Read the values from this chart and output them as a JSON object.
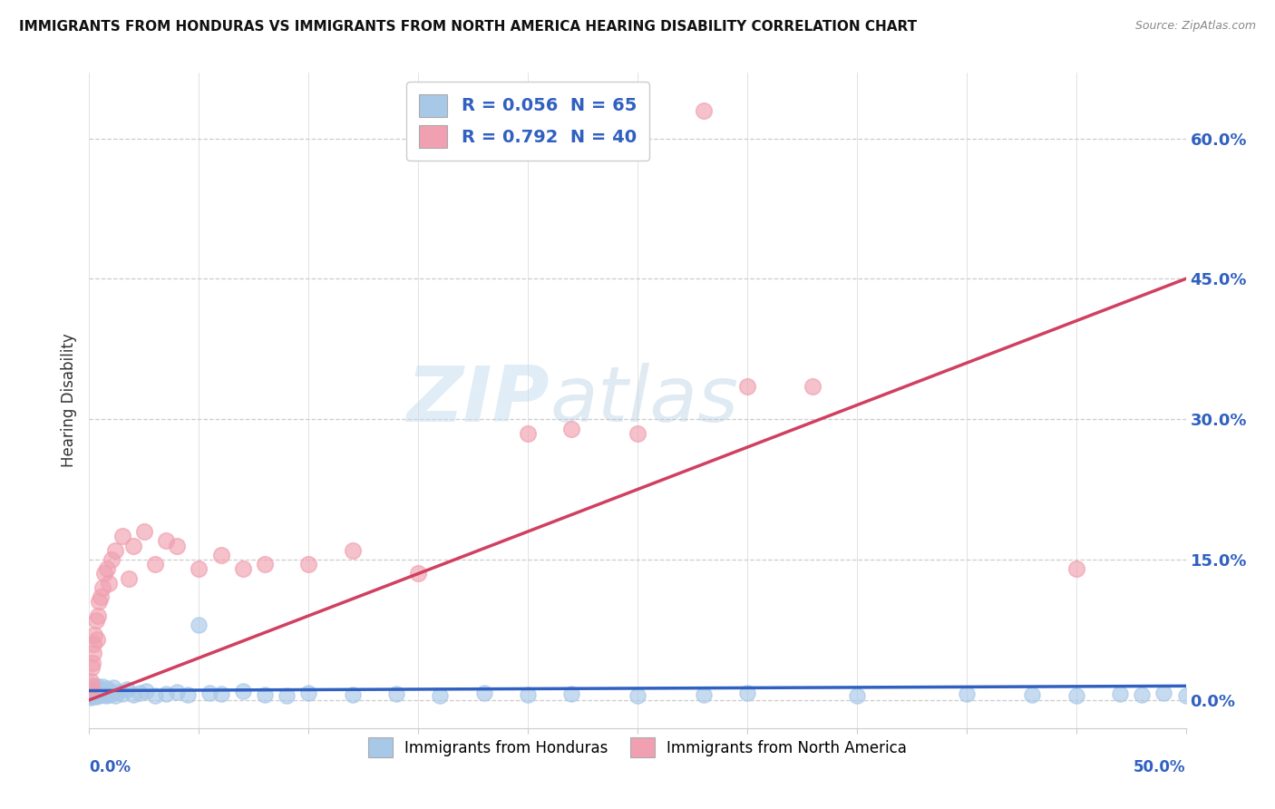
{
  "title": "IMMIGRANTS FROM HONDURAS VS IMMIGRANTS FROM NORTH AMERICA HEARING DISABILITY CORRELATION CHART",
  "source": "Source: ZipAtlas.com",
  "ylabel": "Hearing Disability",
  "ytick_labels": [
    "0.0%",
    "15.0%",
    "30.0%",
    "45.0%",
    "60.0%"
  ],
  "ytick_values": [
    0,
    15,
    30,
    45,
    60
  ],
  "xlim": [
    0,
    50
  ],
  "ylim": [
    -3,
    67
  ],
  "legend_R1": "R = 0.056",
  "legend_N1": "N = 65",
  "legend_R2": "R = 0.792",
  "legend_N2": "N = 40",
  "legend_bottom_1": "Immigrants from Honduras",
  "legend_bottom_2": "Immigrants from North America",
  "blue_scatter_color": "#a8c8e8",
  "pink_scatter_color": "#f0a0b0",
  "blue_line_color": "#3060c0",
  "pink_line_color": "#d04060",
  "watermark_zip": "ZIP",
  "watermark_atlas": "atlas",
  "grid_color": "#cccccc",
  "honduras_x": [
    0.05,
    0.08,
    0.1,
    0.12,
    0.15,
    0.18,
    0.2,
    0.22,
    0.25,
    0.28,
    0.3,
    0.32,
    0.35,
    0.38,
    0.4,
    0.42,
    0.45,
    0.48,
    0.5,
    0.55,
    0.6,
    0.65,
    0.7,
    0.75,
    0.8,
    0.85,
    0.9,
    0.95,
    1.0,
    1.1,
    1.2,
    1.3,
    1.5,
    1.7,
    2.0,
    2.3,
    2.6,
    3.0,
    3.5,
    4.0,
    4.5,
    5.0,
    5.5,
    6.0,
    7.0,
    8.0,
    9.0,
    10.0,
    12.0,
    14.0,
    16.0,
    18.0,
    20.0,
    22.0,
    25.0,
    28.0,
    30.0,
    35.0,
    40.0,
    43.0,
    45.0,
    47.0,
    48.0,
    49.0,
    50.0
  ],
  "honduras_y": [
    0.5,
    0.3,
    1.0,
    0.4,
    0.8,
    0.6,
    1.2,
    0.5,
    0.9,
    0.7,
    1.5,
    0.4,
    1.0,
    0.6,
    1.3,
    0.8,
    0.5,
    1.1,
    0.7,
    0.9,
    1.4,
    0.6,
    1.0,
    0.5,
    1.2,
    0.8,
    0.6,
    1.0,
    0.7,
    1.3,
    0.5,
    0.9,
    0.7,
    1.1,
    0.6,
    0.8,
    1.0,
    0.5,
    0.7,
    0.9,
    0.6,
    8.0,
    0.8,
    0.7,
    1.0,
    0.6,
    0.5,
    0.8,
    0.6,
    0.7,
    0.5,
    0.8,
    0.6,
    0.7,
    0.5,
    0.6,
    0.8,
    0.5,
    0.7,
    0.6,
    0.5,
    0.7,
    0.6,
    0.8,
    0.5
  ],
  "north_america_x": [
    0.05,
    0.08,
    0.1,
    0.12,
    0.15,
    0.18,
    0.2,
    0.25,
    0.3,
    0.35,
    0.4,
    0.45,
    0.5,
    0.6,
    0.7,
    0.8,
    0.9,
    1.0,
    1.2,
    1.5,
    1.8,
    2.0,
    2.5,
    3.0,
    3.5,
    4.0,
    5.0,
    6.0,
    7.0,
    8.0,
    10.0,
    12.0,
    15.0,
    20.0,
    22.0,
    25.0,
    28.0,
    30.0,
    33.0,
    45.0
  ],
  "north_america_y": [
    1.0,
    2.0,
    3.5,
    1.5,
    4.0,
    5.0,
    6.0,
    7.0,
    8.5,
    6.5,
    9.0,
    10.5,
    11.0,
    12.0,
    13.5,
    14.0,
    12.5,
    15.0,
    16.0,
    17.5,
    13.0,
    16.5,
    18.0,
    14.5,
    17.0,
    16.5,
    14.0,
    15.5,
    14.0,
    14.5,
    14.5,
    16.0,
    13.5,
    28.5,
    29.0,
    28.5,
    63.0,
    33.5,
    33.5,
    14.0
  ],
  "pink_line_x0": 0,
  "pink_line_y0": 0.0,
  "pink_line_x1": 50,
  "pink_line_y1": 45.0,
  "blue_line_x0": 0,
  "blue_line_y0": 1.0,
  "blue_line_x1": 50,
  "blue_line_y1": 1.5
}
